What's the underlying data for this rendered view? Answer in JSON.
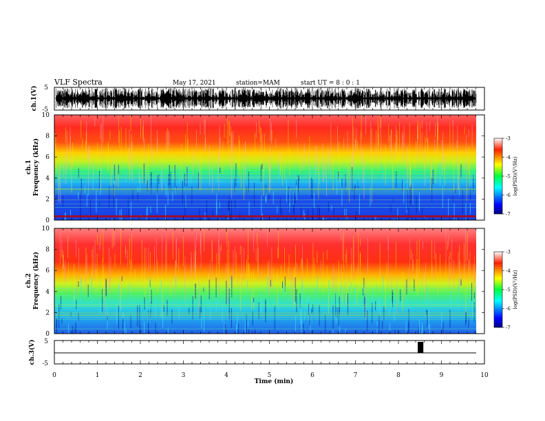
{
  "header": {
    "title": "VLF Spectra",
    "date": "May 17, 2021",
    "station": "station=MAM",
    "start": "start  UT =  8 : 0  : 1"
  },
  "colorbar": {
    "label": "log(PSD)(V²/Hz)",
    "ticks": [
      "-3",
      "-4",
      "-5",
      "-6",
      "-7"
    ]
  },
  "chart_data": [
    {
      "type": "line",
      "name": "channel-1-waveform",
      "ylabel": "ch.1(V)",
      "ylim": [
        -5,
        5
      ],
      "yticks": [
        "5",
        "-5"
      ],
      "xlim": [
        0,
        10
      ]
    },
    {
      "type": "heatmap",
      "name": "channel-1-spectrogram",
      "ylabel": "ch.1 Frequency (kHz)",
      "ylim": [
        0,
        10
      ],
      "yticks": [
        "10",
        "8",
        "6",
        "4",
        "2",
        "0"
      ],
      "xlim": [
        0,
        10
      ],
      "clim": [
        -7,
        -3
      ]
    },
    {
      "type": "heatmap",
      "name": "channel-2-spectrogram",
      "ylabel": "ch.2 Frequency (kHz)",
      "ylim": [
        0,
        10
      ],
      "yticks": [
        "10",
        "8",
        "6",
        "4",
        "2",
        "0"
      ],
      "xlim": [
        0,
        10
      ],
      "clim": [
        -7,
        -3
      ]
    },
    {
      "type": "line",
      "name": "channel-3-waveform",
      "ylabel": "ch.3(V)",
      "ylim": [
        -5,
        5
      ],
      "yticks": [
        "5",
        "-5"
      ],
      "xlim": [
        0,
        10
      ],
      "pulse": {
        "x_start": 8.45,
        "x_end": 8.58
      },
      "xlabel": "Time (min)",
      "xticks": [
        "0",
        "1",
        "2",
        "3",
        "4",
        "5",
        "6",
        "7",
        "8",
        "9",
        "10"
      ]
    }
  ]
}
